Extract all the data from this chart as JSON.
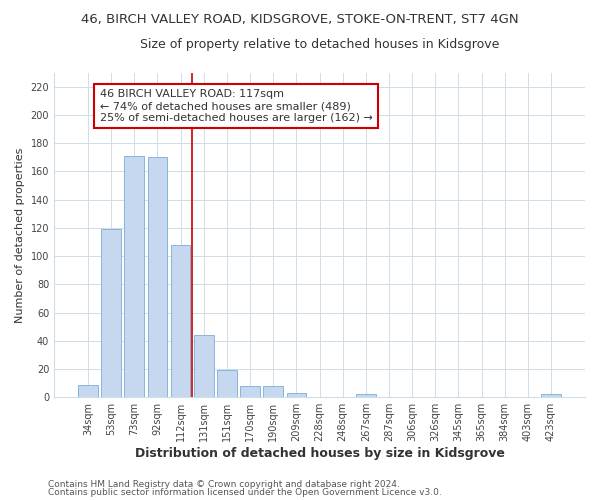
{
  "title": "46, BIRCH VALLEY ROAD, KIDSGROVE, STOKE-ON-TRENT, ST7 4GN",
  "subtitle": "Size of property relative to detached houses in Kidsgrove",
  "xlabel": "Distribution of detached houses by size in Kidsgrove",
  "ylabel": "Number of detached properties",
  "categories": [
    "34sqm",
    "53sqm",
    "73sqm",
    "92sqm",
    "112sqm",
    "131sqm",
    "151sqm",
    "170sqm",
    "190sqm",
    "209sqm",
    "228sqm",
    "248sqm",
    "267sqm",
    "287sqm",
    "306sqm",
    "326sqm",
    "345sqm",
    "365sqm",
    "384sqm",
    "403sqm",
    "423sqm"
  ],
  "values": [
    9,
    119,
    171,
    170,
    108,
    44,
    19,
    8,
    8,
    3,
    0,
    0,
    2,
    0,
    0,
    0,
    0,
    0,
    0,
    0,
    2
  ],
  "bar_color": "#c5d8f0",
  "bar_edge_color": "#7aadd4",
  "vline_x": 4.5,
  "vline_color": "#cc0000",
  "annotation_line1": "46 BIRCH VALLEY ROAD: 117sqm",
  "annotation_line2": "← 74% of detached houses are smaller (489)",
  "annotation_line3": "25% of semi-detached houses are larger (162) →",
  "annotation_box_color": "#ffffff",
  "annotation_box_edge": "#cc0000",
  "ylim": [
    0,
    230
  ],
  "yticks": [
    0,
    20,
    40,
    60,
    80,
    100,
    120,
    140,
    160,
    180,
    200,
    220
  ],
  "footer1": "Contains HM Land Registry data © Crown copyright and database right 2024.",
  "footer2": "Contains public sector information licensed under the Open Government Licence v3.0.",
  "background_color": "#ffffff",
  "grid_color": "#d0dce8",
  "title_fontsize": 9.5,
  "subtitle_fontsize": 9,
  "xlabel_fontsize": 9,
  "ylabel_fontsize": 8,
  "tick_fontsize": 7,
  "footer_fontsize": 6.5,
  "ann_fontsize": 8
}
